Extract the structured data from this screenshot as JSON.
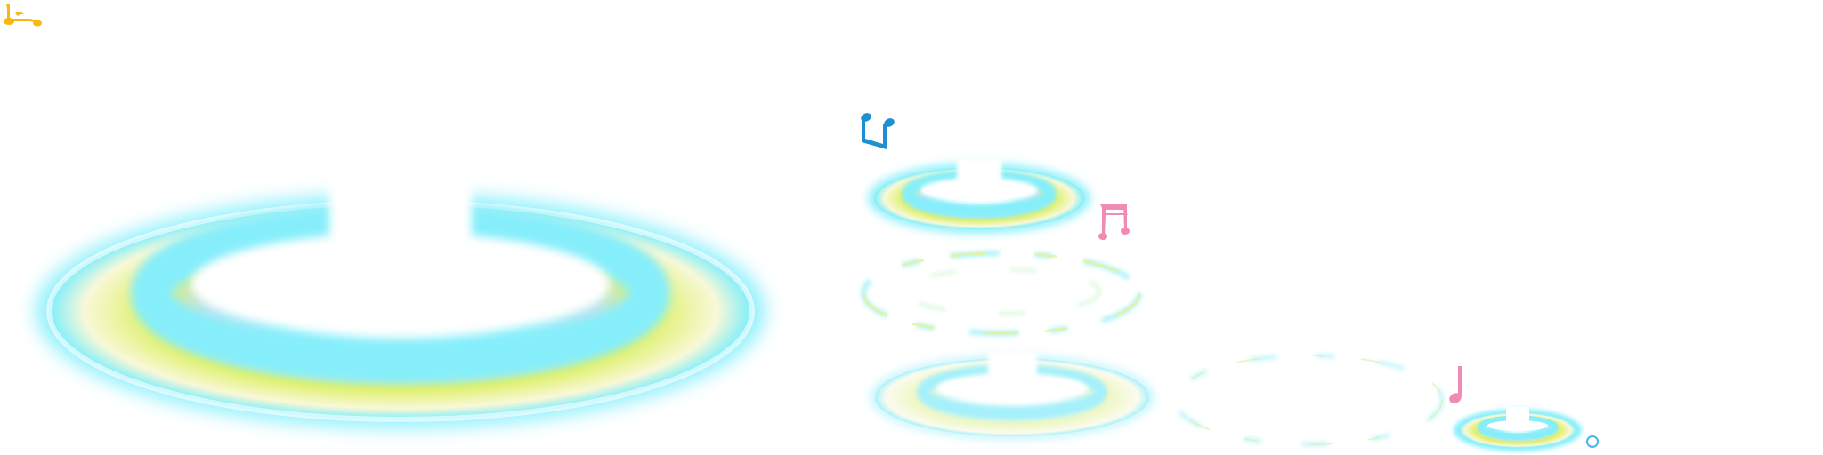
{
  "sprite_sheet": {
    "background": "#ffffff",
    "colors": {
      "glow_cyan": "#7feefc",
      "ring_lime": "#e4f25a",
      "ring_cream": "#fbfbe8",
      "note_yellow": "#f6b811",
      "note_blue": "#1e8fd0",
      "note_pink": "#f08cb3",
      "sparkle_outline": "#3fb8ea"
    },
    "sprites": [
      {
        "name": "large-glow-ring",
        "kind": "ring-open-top",
        "style": "full"
      },
      {
        "name": "small-glow-ring",
        "kind": "ring-open-top",
        "style": "full"
      },
      {
        "name": "faint-glow-ring-top",
        "kind": "ring-dashed",
        "style": "faint"
      },
      {
        "name": "medium-glow-ring",
        "kind": "ring-open-top",
        "style": "soft"
      },
      {
        "name": "faint-glow-ring-right",
        "kind": "ring-dashed",
        "style": "faint"
      },
      {
        "name": "tiny-glow-ring",
        "kind": "ring-open-top",
        "style": "full"
      }
    ],
    "notes": [
      {
        "name": "yellow-music-note-icon",
        "color": "note_yellow",
        "glyph": "eighth-note"
      },
      {
        "name": "blue-music-note-icon",
        "color": "note_blue",
        "glyph": "beamed-notes"
      },
      {
        "name": "pink-beamed-notes-icon",
        "color": "note_pink",
        "glyph": "beamed-sixteenth-notes"
      },
      {
        "name": "pink-music-note-icon",
        "color": "note_pink",
        "glyph": "quarter-note"
      },
      {
        "name": "sparkle-circle-icon",
        "color": "sparkle_outline",
        "glyph": "small-ring"
      }
    ]
  }
}
